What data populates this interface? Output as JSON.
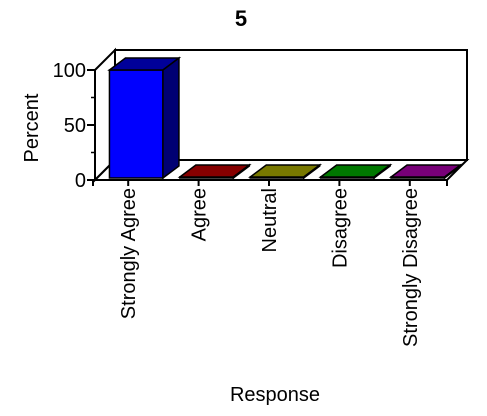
{
  "chart_data": {
    "type": "bar",
    "title": "5",
    "xlabel": "Response",
    "ylabel": "Percent",
    "categories": [
      "Strongly Agree",
      "Agree",
      "Neutral",
      "Disagree",
      "Strongly Disagree"
    ],
    "values": [
      100,
      0,
      0,
      0,
      0
    ],
    "ylim": [
      0,
      100
    ],
    "yticks": [
      0,
      50,
      100
    ],
    "grid": false,
    "legend": "none",
    "colors": [
      "#0000ff",
      "#e00000",
      "#c8c800",
      "#00c800",
      "#c800c8"
    ],
    "three_d": true
  }
}
